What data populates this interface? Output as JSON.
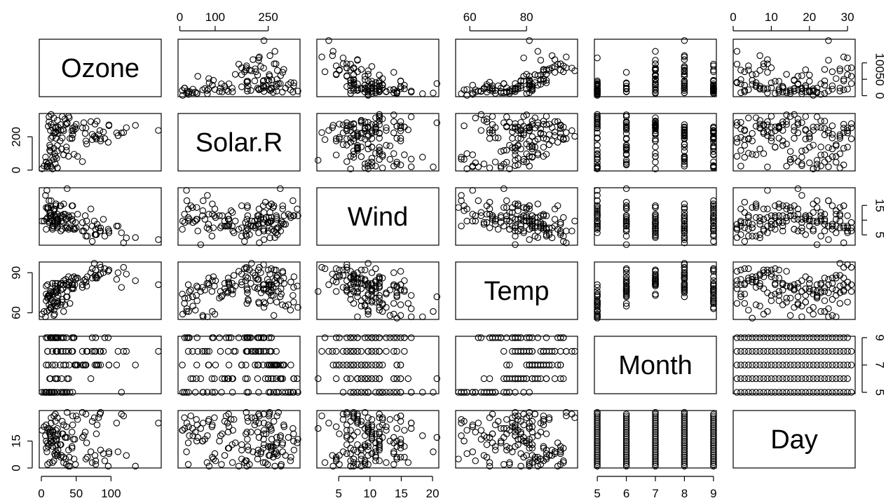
{
  "chart_data": {
    "type": "scatter",
    "layout": "pairs-matrix",
    "variables": [
      "Ozone",
      "Solar.R",
      "Wind",
      "Temp",
      "Month",
      "Day"
    ],
    "axes": {
      "Ozone": {
        "range": [
          -3,
          172
        ],
        "ticks": [
          0,
          50,
          100
        ]
      },
      "Solar.R": {
        "range": [
          -5,
          340
        ],
        "ticks": [
          0,
          100,
          250
        ],
        "ticks_left": [
          0,
          200
        ]
      },
      "Wind": {
        "range": [
          1.5,
          21.0
        ],
        "ticks": [
          5,
          10,
          15,
          20
        ],
        "ticks_right": [
          5,
          10,
          15
        ],
        "ticks_right_labels": [
          "5",
          "",
          "15"
        ]
      },
      "Temp": {
        "range": [
          55,
          98
        ],
        "ticks": [
          60,
          80
        ],
        "ticks_left": [
          60,
          90
        ]
      },
      "Month": {
        "range": [
          4.9,
          9.1
        ],
        "ticks": [
          5,
          6,
          7,
          8,
          9
        ],
        "ticks_right": [
          5,
          7,
          9
        ]
      },
      "Day": {
        "range": [
          0,
          32
        ],
        "ticks": [
          0,
          10,
          20,
          30
        ],
        "ticks_left": [
          0,
          15
        ]
      }
    },
    "tick_sides": {
      "top": [
        "Solar.R",
        "Temp",
        "Day"
      ],
      "bottom": [
        "Ozone",
        "Wind",
        "Month"
      ],
      "left": [
        "Solar.R",
        "Temp",
        "Day"
      ],
      "right": [
        "Ozone",
        "Wind",
        "Month"
      ]
    },
    "observations": [
      [
        41,
        190,
        7.4,
        67,
        5,
        1
      ],
      [
        36,
        118,
        8.0,
        72,
        5,
        2
      ],
      [
        12,
        149,
        12.6,
        74,
        5,
        3
      ],
      [
        18,
        313,
        11.5,
        62,
        5,
        4
      ],
      [
        null,
        null,
        14.3,
        56,
        5,
        5
      ],
      [
        28,
        null,
        14.9,
        66,
        5,
        6
      ],
      [
        23,
        299,
        8.6,
        65,
        5,
        7
      ],
      [
        19,
        99,
        13.8,
        59,
        5,
        8
      ],
      [
        8,
        19,
        20.1,
        61,
        5,
        9
      ],
      [
        null,
        194,
        8.6,
        69,
        5,
        10
      ],
      [
        7,
        null,
        6.9,
        74,
        5,
        11
      ],
      [
        16,
        256,
        9.7,
        69,
        5,
        12
      ],
      [
        11,
        290,
        9.2,
        66,
        5,
        13
      ],
      [
        14,
        274,
        10.9,
        68,
        5,
        14
      ],
      [
        18,
        65,
        13.2,
        58,
        5,
        15
      ],
      [
        14,
        334,
        11.5,
        64,
        5,
        16
      ],
      [
        34,
        307,
        12.0,
        66,
        5,
        17
      ],
      [
        6,
        78,
        18.4,
        57,
        5,
        18
      ],
      [
        30,
        322,
        11.5,
        68,
        5,
        19
      ],
      [
        11,
        44,
        9.7,
        62,
        5,
        20
      ],
      [
        1,
        8,
        9.7,
        59,
        5,
        21
      ],
      [
        11,
        320,
        16.6,
        73,
        5,
        22
      ],
      [
        4,
        25,
        9.7,
        61,
        5,
        23
      ],
      [
        32,
        92,
        12.0,
        61,
        5,
        24
      ],
      [
        null,
        66,
        16.6,
        57,
        5,
        25
      ],
      [
        null,
        266,
        14.9,
        58,
        5,
        26
      ],
      [
        null,
        null,
        8.0,
        57,
        5,
        27
      ],
      [
        23,
        13,
        12.0,
        67,
        5,
        28
      ],
      [
        45,
        252,
        14.9,
        81,
        5,
        29
      ],
      [
        115,
        223,
        5.7,
        79,
        5,
        30
      ],
      [
        37,
        279,
        7.4,
        76,
        5,
        31
      ],
      [
        null,
        286,
        8.6,
        78,
        6,
        1
      ],
      [
        null,
        287,
        9.7,
        74,
        6,
        2
      ],
      [
        null,
        242,
        16.1,
        67,
        6,
        3
      ],
      [
        null,
        186,
        9.2,
        84,
        6,
        4
      ],
      [
        null,
        220,
        8.6,
        85,
        6,
        5
      ],
      [
        null,
        264,
        14.3,
        79,
        6,
        6
      ],
      [
        29,
        127,
        9.7,
        82,
        6,
        7
      ],
      [
        null,
        273,
        6.9,
        87,
        6,
        8
      ],
      [
        71,
        291,
        13.8,
        90,
        6,
        9
      ],
      [
        39,
        323,
        11.5,
        87,
        6,
        10
      ],
      [
        null,
        259,
        10.9,
        93,
        6,
        11
      ],
      [
        null,
        250,
        9.2,
        92,
        6,
        12
      ],
      [
        23,
        148,
        8.0,
        82,
        6,
        13
      ],
      [
        null,
        332,
        13.8,
        80,
        6,
        14
      ],
      [
        null,
        322,
        11.5,
        79,
        6,
        15
      ],
      [
        21,
        191,
        14.9,
        77,
        6,
        16
      ],
      [
        37,
        284,
        20.7,
        72,
        6,
        17
      ],
      [
        20,
        37,
        9.2,
        65,
        6,
        18
      ],
      [
        12,
        120,
        11.5,
        73,
        6,
        19
      ],
      [
        13,
        137,
        10.3,
        76,
        6,
        20
      ],
      [
        null,
        150,
        6.3,
        77,
        6,
        21
      ],
      [
        null,
        59,
        1.7,
        76,
        6,
        22
      ],
      [
        null,
        91,
        4.6,
        76,
        6,
        23
      ],
      [
        null,
        250,
        6.3,
        76,
        6,
        24
      ],
      [
        null,
        135,
        8.0,
        75,
        6,
        25
      ],
      [
        null,
        127,
        8.0,
        78,
        6,
        26
      ],
      [
        null,
        47,
        10.3,
        73,
        6,
        27
      ],
      [
        null,
        98,
        11.5,
        80,
        6,
        28
      ],
      [
        null,
        31,
        14.9,
        77,
        6,
        29
      ],
      [
        null,
        138,
        8.0,
        83,
        6,
        30
      ],
      [
        135,
        269,
        4.1,
        84,
        7,
        1
      ],
      [
        49,
        248,
        9.2,
        85,
        7,
        2
      ],
      [
        32,
        236,
        9.2,
        81,
        7,
        3
      ],
      [
        null,
        101,
        10.9,
        84,
        7,
        4
      ],
      [
        64,
        175,
        4.6,
        83,
        7,
        5
      ],
      [
        40,
        314,
        10.9,
        83,
        7,
        6
      ],
      [
        77,
        276,
        5.1,
        88,
        7,
        7
      ],
      [
        97,
        267,
        6.3,
        92,
        7,
        8
      ],
      [
        97,
        272,
        5.7,
        92,
        7,
        9
      ],
      [
        85,
        175,
        7.4,
        89,
        7,
        10
      ],
      [
        null,
        139,
        8.6,
        82,
        7,
        11
      ],
      [
        10,
        264,
        14.3,
        73,
        7,
        12
      ],
      [
        27,
        175,
        14.9,
        81,
        7,
        13
      ],
      [
        null,
        291,
        14.9,
        91,
        7,
        14
      ],
      [
        7,
        48,
        14.3,
        80,
        7,
        15
      ],
      [
        48,
        260,
        6.9,
        81,
        7,
        16
      ],
      [
        35,
        274,
        10.3,
        82,
        7,
        17
      ],
      [
        61,
        285,
        6.3,
        84,
        7,
        18
      ],
      [
        79,
        187,
        5.1,
        87,
        7,
        19
      ],
      [
        63,
        220,
        11.5,
        85,
        7,
        20
      ],
      [
        16,
        7,
        6.9,
        74,
        7,
        21
      ],
      [
        null,
        258,
        9.7,
        81,
        7,
        22
      ],
      [
        null,
        295,
        11.5,
        82,
        7,
        23
      ],
      [
        80,
        294,
        8.6,
        86,
        7,
        24
      ],
      [
        108,
        223,
        8.0,
        85,
        7,
        25
      ],
      [
        20,
        81,
        8.6,
        82,
        7,
        26
      ],
      [
        52,
        82,
        12.0,
        86,
        7,
        27
      ],
      [
        82,
        213,
        7.4,
        88,
        7,
        28
      ],
      [
        50,
        275,
        7.4,
        86,
        7,
        29
      ],
      [
        64,
        253,
        7.4,
        83,
        7,
        30
      ],
      [
        59,
        254,
        9.2,
        81,
        7,
        31
      ],
      [
        39,
        83,
        6.9,
        81,
        8,
        1
      ],
      [
        9,
        24,
        13.8,
        81,
        8,
        2
      ],
      [
        16,
        77,
        7.4,
        82,
        8,
        3
      ],
      [
        78,
        null,
        6.9,
        86,
        8,
        4
      ],
      [
        35,
        null,
        7.4,
        85,
        8,
        5
      ],
      [
        66,
        null,
        4.6,
        87,
        8,
        6
      ],
      [
        122,
        255,
        4.0,
        89,
        8,
        7
      ],
      [
        89,
        229,
        10.3,
        90,
        8,
        8
      ],
      [
        110,
        207,
        8.0,
        90,
        8,
        9
      ],
      [
        null,
        222,
        8.6,
        92,
        8,
        10
      ],
      [
        null,
        137,
        11.5,
        86,
        8,
        11
      ],
      [
        44,
        192,
        11.5,
        86,
        8,
        12
      ],
      [
        28,
        273,
        11.5,
        82,
        8,
        13
      ],
      [
        65,
        157,
        9.7,
        80,
        8,
        14
      ],
      [
        null,
        64,
        11.5,
        79,
        8,
        15
      ],
      [
        22,
        71,
        10.3,
        77,
        8,
        16
      ],
      [
        59,
        51,
        6.3,
        79,
        8,
        17
      ],
      [
        23,
        115,
        7.4,
        76,
        8,
        18
      ],
      [
        31,
        244,
        10.9,
        78,
        8,
        19
      ],
      [
        44,
        190,
        10.3,
        78,
        8,
        20
      ],
      [
        21,
        259,
        15.5,
        77,
        8,
        21
      ],
      [
        9,
        36,
        14.3,
        72,
        8,
        22
      ],
      [
        null,
        255,
        12.6,
        75,
        8,
        23
      ],
      [
        45,
        212,
        9.7,
        79,
        8,
        24
      ],
      [
        168,
        238,
        3.4,
        81,
        8,
        25
      ],
      [
        73,
        215,
        8.0,
        86,
        8,
        26
      ],
      [
        null,
        153,
        5.7,
        88,
        8,
        27
      ],
      [
        76,
        203,
        9.7,
        97,
        8,
        28
      ],
      [
        118,
        225,
        2.3,
        94,
        8,
        29
      ],
      [
        84,
        237,
        6.3,
        96,
        8,
        30
      ],
      [
        85,
        188,
        6.3,
        94,
        8,
        31
      ],
      [
        96,
        167,
        6.9,
        91,
        9,
        1
      ],
      [
        78,
        197,
        5.1,
        92,
        9,
        2
      ],
      [
        73,
        183,
        2.8,
        93,
        9,
        3
      ],
      [
        91,
        189,
        4.6,
        93,
        9,
        4
      ],
      [
        47,
        95,
        7.4,
        87,
        9,
        5
      ],
      [
        32,
        92,
        15.5,
        84,
        9,
        6
      ],
      [
        20,
        252,
        10.9,
        80,
        9,
        7
      ],
      [
        23,
        220,
        10.3,
        78,
        9,
        8
      ],
      [
        21,
        230,
        10.9,
        75,
        9,
        9
      ],
      [
        24,
        259,
        9.7,
        73,
        9,
        10
      ],
      [
        44,
        236,
        14.9,
        81,
        9,
        11
      ],
      [
        21,
        259,
        15.5,
        76,
        9,
        12
      ],
      [
        28,
        238,
        6.3,
        77,
        9,
        13
      ],
      [
        9,
        24,
        10.9,
        71,
        9,
        14
      ],
      [
        13,
        112,
        11.5,
        71,
        9,
        15
      ],
      [
        46,
        237,
        6.9,
        78,
        9,
        16
      ],
      [
        18,
        224,
        13.8,
        67,
        9,
        17
      ],
      [
        13,
        27,
        10.3,
        76,
        9,
        18
      ],
      [
        24,
        238,
        10.3,
        68,
        9,
        19
      ],
      [
        16,
        201,
        8.0,
        82,
        9,
        20
      ],
      [
        13,
        238,
        12.6,
        64,
        9,
        21
      ],
      [
        23,
        14,
        9.2,
        71,
        9,
        22
      ],
      [
        36,
        139,
        10.3,
        81,
        9,
        23
      ],
      [
        7,
        49,
        10.3,
        69,
        9,
        24
      ],
      [
        14,
        20,
        16.6,
        63,
        9,
        25
      ],
      [
        30,
        193,
        6.9,
        70,
        9,
        26
      ],
      [
        null,
        145,
        13.2,
        77,
        9,
        27
      ],
      [
        14,
        191,
        14.3,
        75,
        9,
        28
      ],
      [
        18,
        131,
        8.0,
        76,
        9,
        29
      ],
      [
        20,
        223,
        11.5,
        68,
        9,
        30
      ]
    ]
  }
}
